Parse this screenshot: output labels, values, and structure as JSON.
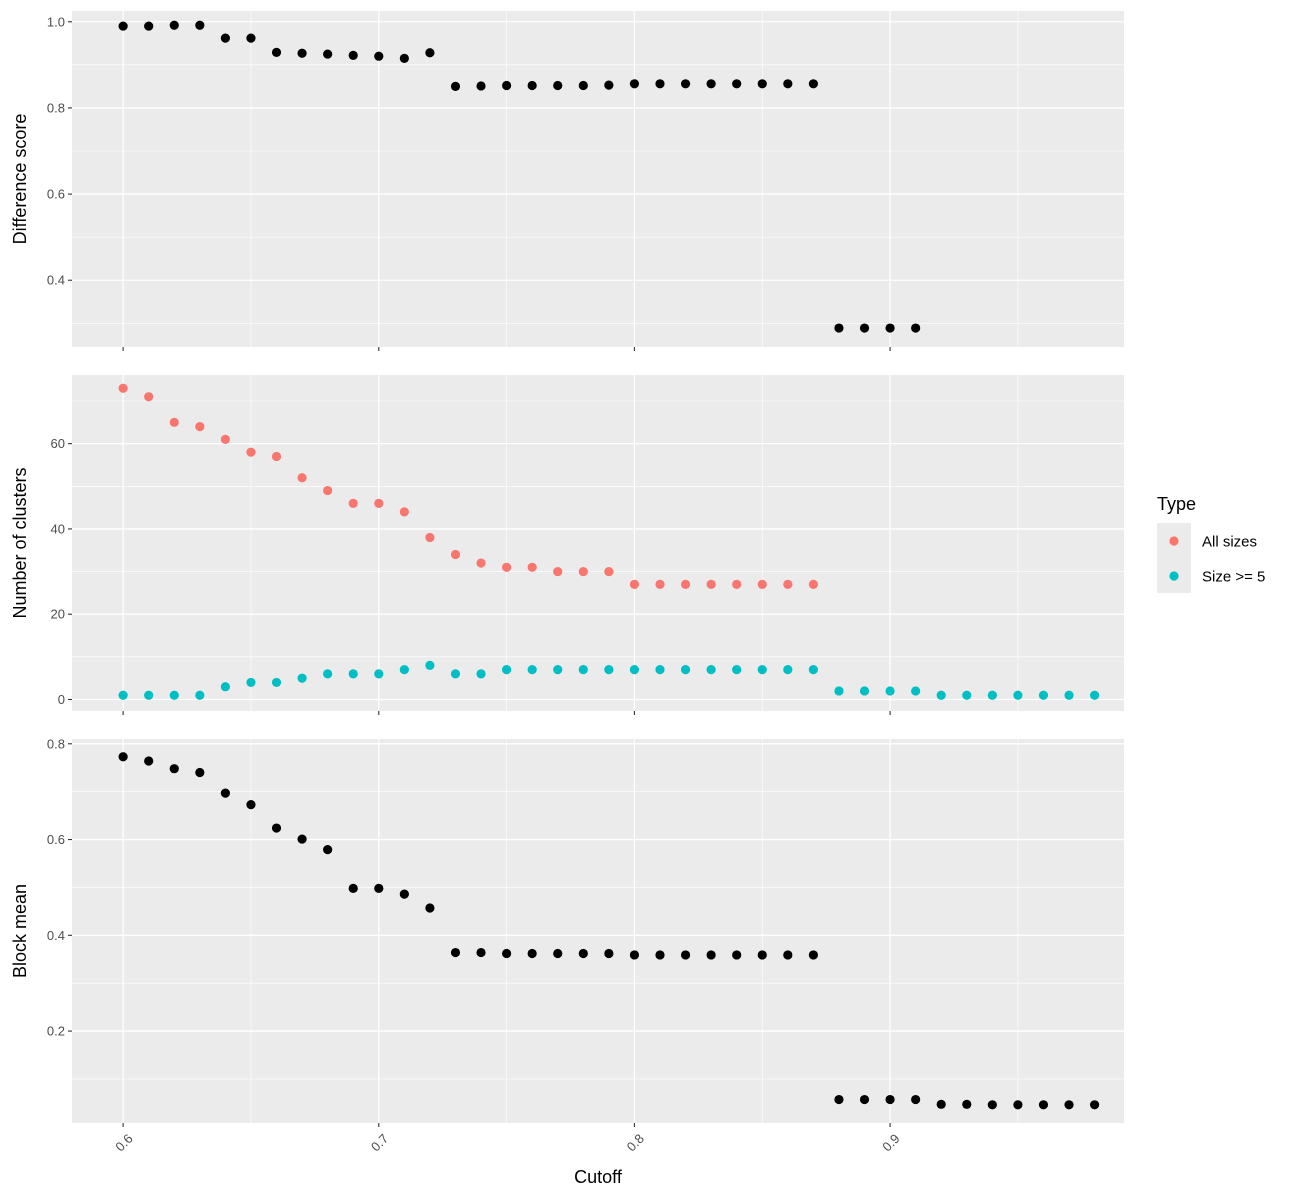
{
  "chart_data": {
    "type": "scatter",
    "xlabel": "Cutoff",
    "x_ticks": [
      "0.6",
      "0.7",
      "0.8",
      "0.9"
    ],
    "x_tick_values": [
      0.6,
      0.7,
      0.8,
      0.9
    ],
    "xlim": [
      0.58,
      0.9915
    ],
    "grid": true,
    "legend": {
      "title": "Type",
      "placement": "right",
      "entries": [
        {
          "label": "All sizes",
          "color": "#F8766D"
        },
        {
          "label": "Size >= 5",
          "color": "#00BFC4"
        }
      ]
    },
    "panels": [
      {
        "ylabel": "Difference score",
        "ylim": [
          0.245,
          1.025
        ],
        "y_ticks": [
          "0.4",
          "0.6",
          "0.8",
          "1.0"
        ],
        "y_tick_values": [
          0.4,
          0.6,
          0.8,
          1.0
        ],
        "series": [
          {
            "color": "#000000",
            "x": [
              0.6,
              0.61,
              0.62,
              0.63,
              0.64,
              0.65,
              0.66,
              0.67,
              0.68,
              0.69,
              0.7,
              0.71,
              0.72,
              0.73,
              0.74,
              0.75,
              0.76,
              0.77,
              0.78,
              0.79,
              0.8,
              0.81,
              0.82,
              0.83,
              0.84,
              0.85,
              0.86,
              0.87,
              0.88,
              0.89,
              0.9,
              0.91
            ],
            "y": [
              0.99,
              0.99,
              0.992,
              0.992,
              0.962,
              0.962,
              0.929,
              0.927,
              0.925,
              0.922,
              0.92,
              0.915,
              0.928,
              0.85,
              0.851,
              0.852,
              0.852,
              0.852,
              0.852,
              0.853,
              0.856,
              0.856,
              0.856,
              0.856,
              0.856,
              0.856,
              0.856,
              0.856,
              0.289,
              0.289,
              0.289,
              0.289
            ]
          }
        ]
      },
      {
        "ylabel": "Number of clusters",
        "ylim": [
          -2.7,
          76.1
        ],
        "y_ticks": [
          "0",
          "20",
          "40",
          "60"
        ],
        "y_tick_values": [
          0,
          20,
          40,
          60
        ],
        "series": [
          {
            "name": "All sizes",
            "color": "#F8766D",
            "x": [
              0.6,
              0.61,
              0.62,
              0.63,
              0.64,
              0.65,
              0.66,
              0.67,
              0.68,
              0.69,
              0.7,
              0.71,
              0.72,
              0.73,
              0.74,
              0.75,
              0.76,
              0.77,
              0.78,
              0.79,
              0.8,
              0.81,
              0.82,
              0.83,
              0.84,
              0.85,
              0.86,
              0.87
            ],
            "y": [
              73,
              71,
              65,
              64,
              61,
              58,
              57,
              52,
              49,
              46,
              46,
              44,
              38,
              34,
              32,
              31,
              31,
              30,
              30,
              30,
              27,
              27,
              27,
              27,
              27,
              27,
              27,
              27
            ]
          },
          {
            "name": "Size >= 5",
            "color": "#00BFC4",
            "x": [
              0.6,
              0.61,
              0.62,
              0.63,
              0.64,
              0.65,
              0.66,
              0.67,
              0.68,
              0.69,
              0.7,
              0.71,
              0.72,
              0.73,
              0.74,
              0.75,
              0.76,
              0.77,
              0.78,
              0.79,
              0.8,
              0.81,
              0.82,
              0.83,
              0.84,
              0.85,
              0.86,
              0.87,
              0.88,
              0.89,
              0.9,
              0.91,
              0.92,
              0.93,
              0.94,
              0.95,
              0.96,
              0.97,
              0.98
            ],
            "y": [
              1,
              1,
              1,
              1,
              3,
              4,
              4,
              5,
              6,
              6,
              6,
              7,
              8,
              6,
              6,
              7,
              7,
              7,
              7,
              7,
              7,
              7,
              7,
              7,
              7,
              7,
              7,
              7,
              2,
              2,
              2,
              2,
              1,
              1,
              1,
              1,
              1,
              1,
              1
            ]
          }
        ]
      },
      {
        "ylabel": "Block mean",
        "ylim": [
          0.008,
          0.81
        ],
        "y_ticks": [
          "0.2",
          "0.4",
          "0.6",
          "0.8"
        ],
        "y_tick_values": [
          0.2,
          0.4,
          0.6,
          0.8
        ],
        "series": [
          {
            "color": "#000000",
            "x": [
              0.6,
              0.61,
              0.62,
              0.63,
              0.64,
              0.65,
              0.66,
              0.67,
              0.68,
              0.69,
              0.7,
              0.71,
              0.72,
              0.73,
              0.74,
              0.75,
              0.76,
              0.77,
              0.78,
              0.79,
              0.8,
              0.81,
              0.82,
              0.83,
              0.84,
              0.85,
              0.86,
              0.87,
              0.88,
              0.89,
              0.9,
              0.91,
              0.92,
              0.93,
              0.94,
              0.95,
              0.96,
              0.97,
              0.98
            ],
            "y": [
              0.773,
              0.764,
              0.748,
              0.74,
              0.697,
              0.673,
              0.624,
              0.601,
              0.579,
              0.498,
              0.498,
              0.486,
              0.457,
              0.364,
              0.364,
              0.362,
              0.362,
              0.362,
              0.362,
              0.362,
              0.359,
              0.359,
              0.359,
              0.359,
              0.359,
              0.359,
              0.359,
              0.359,
              0.057,
              0.057,
              0.057,
              0.057,
              0.047,
              0.047,
              0.046,
              0.046,
              0.046,
              0.046,
              0.046
            ]
          }
        ]
      }
    ]
  }
}
